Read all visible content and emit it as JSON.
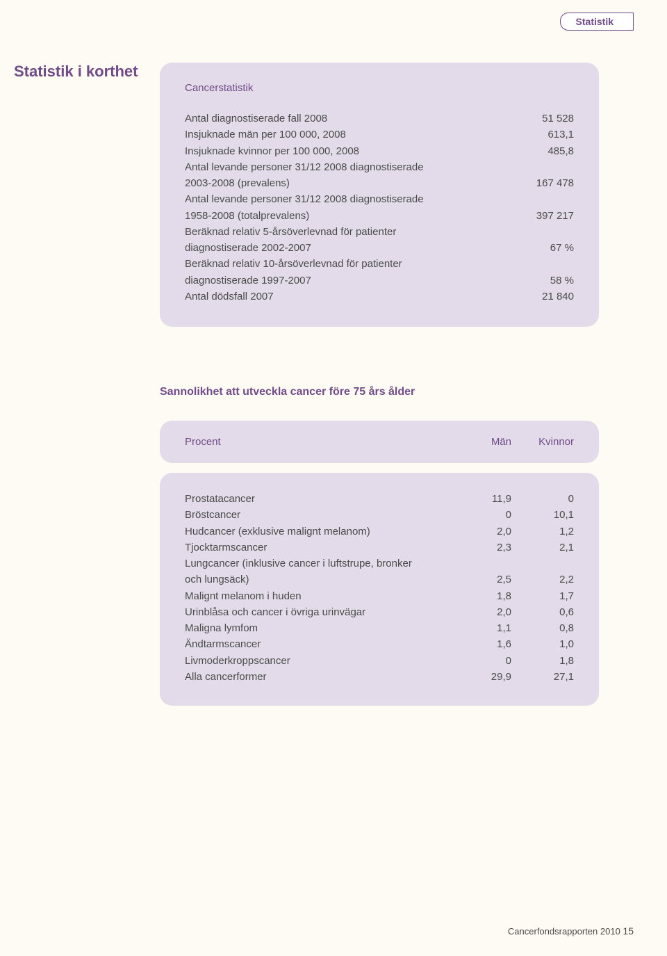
{
  "corner_tab": "Statistik",
  "side_title": "Statistik i korthet",
  "box1": {
    "title": "Cancerstatistik",
    "rows": [
      {
        "label": "Antal diagnostiserade fall 2008",
        "value": "51 528"
      },
      {
        "label": "Insjuknade män per 100 000, 2008",
        "value": "613,1"
      },
      {
        "label": "Insjuknade kvinnor per 100 000, 2008",
        "value": "485,8"
      },
      {
        "label": "Antal levande personer 31/12 2008 diagnostiserade",
        "value": ""
      },
      {
        "label": "2003-2008 (prevalens)",
        "value": "167 478"
      },
      {
        "label": "Antal levande personer 31/12 2008 diagnostiserade",
        "value": ""
      },
      {
        "label": "1958-2008 (totalprevalens)",
        "value": "397 217"
      },
      {
        "label": "Beräknad relativ 5-årsöverlevnad för patienter",
        "value": ""
      },
      {
        "label": "diagnostiserade 2002-2007",
        "value": "67 %"
      },
      {
        "label": "Beräknad relativ 10-årsöverlevnad för patienter",
        "value": ""
      },
      {
        "label": "diagnostiserade 1997-2007",
        "value": "58 %"
      },
      {
        "label": "Antal dödsfall 2007",
        "value": "21 840"
      }
    ]
  },
  "section2_title": "Sannolikhet att utveckla cancer före 75 års ålder",
  "box2_header": {
    "c1": "Procent",
    "c2": "Män",
    "c3": "Kvinnor"
  },
  "box3_rows": [
    {
      "c1": "Prostatacancer",
      "c2": "11,9",
      "c3": "0"
    },
    {
      "c1": "Bröstcancer",
      "c2": "0",
      "c3": "10,1"
    },
    {
      "c1": "Hudcancer (exklusive malignt melanom)",
      "c2": "2,0",
      "c3": "1,2"
    },
    {
      "c1": "Tjocktarmscancer",
      "c2": "2,3",
      "c3": "2,1"
    },
    {
      "c1": "Lungcancer (inklusive cancer i luftstrupe, bronker",
      "c2": "",
      "c3": ""
    },
    {
      "c1": "och lungsäck)",
      "c2": "2,5",
      "c3": "2,2"
    },
    {
      "c1": "Malignt melanom i huden",
      "c2": "1,8",
      "c3": "1,7"
    },
    {
      "c1": "Urinblåsa och cancer i övriga urinvägar",
      "c2": "2,0",
      "c3": "0,6"
    },
    {
      "c1": "Maligna lymfom",
      "c2": "1,1",
      "c3": "0,8"
    },
    {
      "c1": "Ändtarmscancer",
      "c2": "1,6",
      "c3": "1,0"
    },
    {
      "c1": "Livmoderkroppscancer",
      "c2": "0",
      "c3": "1,8"
    },
    {
      "c1": "Alla cancerformer",
      "c2": "29,9",
      "c3": "27,1"
    }
  ],
  "footer_text": "Cancerfondsrapporten 2010",
  "footer_page": "15"
}
